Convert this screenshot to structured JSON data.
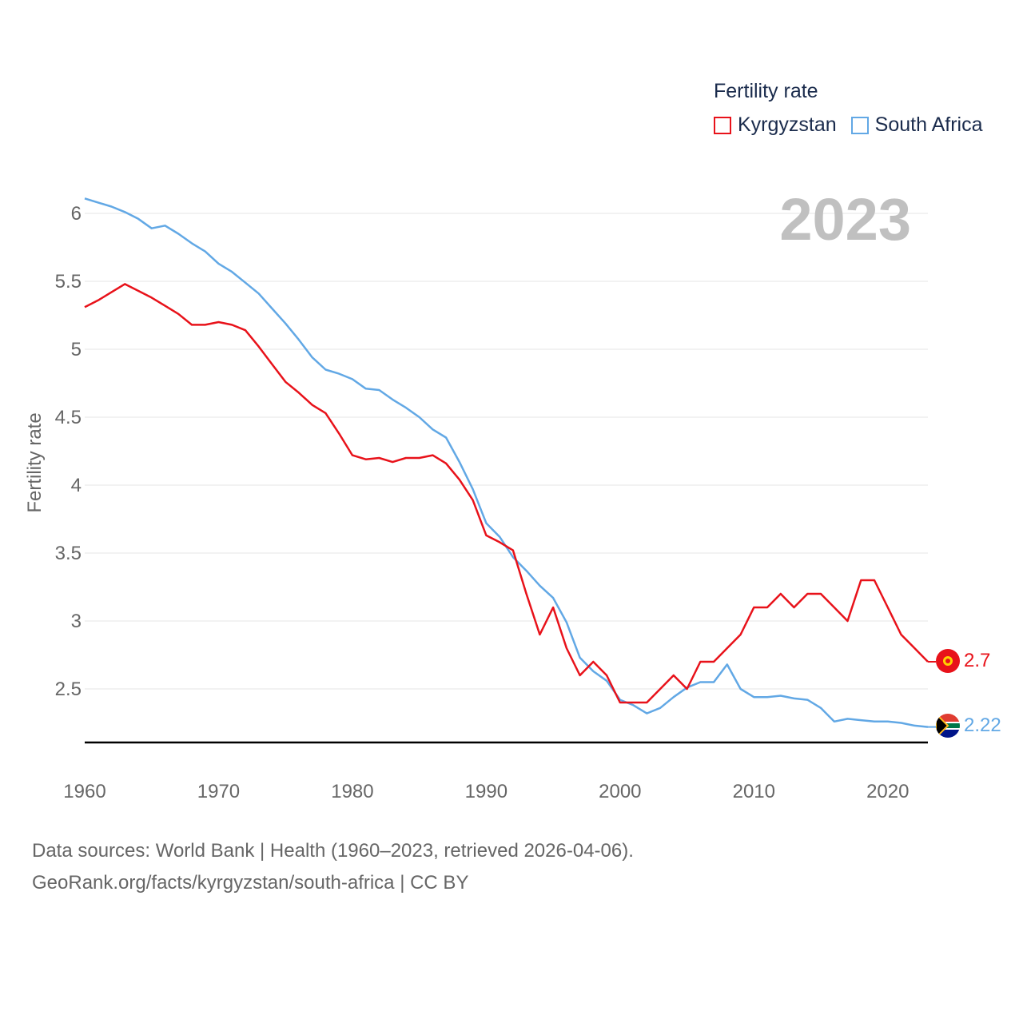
{
  "legend": {
    "title": "Fertility rate",
    "items": [
      {
        "label": "Kyrgyzstan",
        "color": "#e8121a"
      },
      {
        "label": "South Africa",
        "color": "#62a8e5"
      }
    ]
  },
  "year_label": "2023",
  "footer": {
    "line1": "Data sources: World Bank | Health (1960–2023, retrieved 2026-04-06).",
    "line2": "GeoRank.org/facts/kyrgyzstan/south-africa | CC BY"
  },
  "chart_data": {
    "type": "line",
    "title": "Fertility rate",
    "xlabel": "",
    "ylabel": "Fertility rate",
    "xlim": [
      1960,
      2023
    ],
    "ylim": [
      2.1,
      6.2
    ],
    "x_ticks": [
      1960,
      1970,
      1980,
      1990,
      2000,
      2010,
      2020
    ],
    "y_ticks": [
      2.5,
      3,
      3.5,
      4,
      4.5,
      5,
      5.5,
      6
    ],
    "y_tick_labels": [
      "2.5",
      "3",
      "3.5",
      "4",
      "4.5",
      "5",
      "5.5",
      "6"
    ],
    "grid": true,
    "x": [
      1960,
      1961,
      1962,
      1963,
      1964,
      1965,
      1966,
      1967,
      1968,
      1969,
      1970,
      1971,
      1972,
      1973,
      1974,
      1975,
      1976,
      1977,
      1978,
      1979,
      1980,
      1981,
      1982,
      1983,
      1984,
      1985,
      1986,
      1987,
      1988,
      1989,
      1990,
      1991,
      1992,
      1993,
      1994,
      1995,
      1996,
      1997,
      1998,
      1999,
      2000,
      2001,
      2002,
      2003,
      2004,
      2005,
      2006,
      2007,
      2008,
      2009,
      2010,
      2011,
      2012,
      2013,
      2014,
      2015,
      2016,
      2017,
      2018,
      2019,
      2020,
      2021,
      2022,
      2023
    ],
    "series": [
      {
        "name": "Kyrgyzstan",
        "color": "#e8121a",
        "end_label": "2.7",
        "values": [
          5.31,
          5.36,
          5.42,
          5.48,
          5.43,
          5.38,
          5.32,
          5.26,
          5.18,
          5.18,
          5.2,
          5.18,
          5.14,
          5.02,
          4.89,
          4.76,
          4.68,
          4.59,
          4.53,
          4.38,
          4.22,
          4.19,
          4.2,
          4.17,
          4.2,
          4.2,
          4.22,
          4.16,
          4.04,
          3.89,
          3.63,
          3.58,
          3.52,
          3.2,
          2.9,
          3.1,
          2.8,
          2.6,
          2.7,
          2.6,
          2.4,
          2.4,
          2.4,
          2.5,
          2.6,
          2.5,
          2.7,
          2.7,
          2.8,
          2.9,
          3.1,
          3.1,
          3.2,
          3.1,
          3.2,
          3.2,
          3.1,
          3.0,
          3.3,
          3.3,
          3.1,
          2.9,
          2.8,
          2.7
        ]
      },
      {
        "name": "South Africa",
        "color": "#62a8e5",
        "end_label": "2.22",
        "values": [
          6.11,
          6.08,
          6.05,
          6.01,
          5.96,
          5.89,
          5.91,
          5.85,
          5.78,
          5.72,
          5.63,
          5.57,
          5.49,
          5.41,
          5.3,
          5.19,
          5.07,
          4.94,
          4.85,
          4.82,
          4.78,
          4.71,
          4.7,
          4.63,
          4.57,
          4.5,
          4.41,
          4.35,
          4.17,
          3.97,
          3.72,
          3.62,
          3.47,
          3.37,
          3.26,
          3.17,
          2.99,
          2.73,
          2.63,
          2.56,
          2.42,
          2.38,
          2.32,
          2.36,
          2.44,
          2.51,
          2.55,
          2.55,
          2.68,
          2.5,
          2.44,
          2.44,
          2.45,
          2.43,
          2.42,
          2.36,
          2.26,
          2.28,
          2.27,
          2.26,
          2.26,
          2.25,
          2.23,
          2.22
        ]
      }
    ]
  }
}
